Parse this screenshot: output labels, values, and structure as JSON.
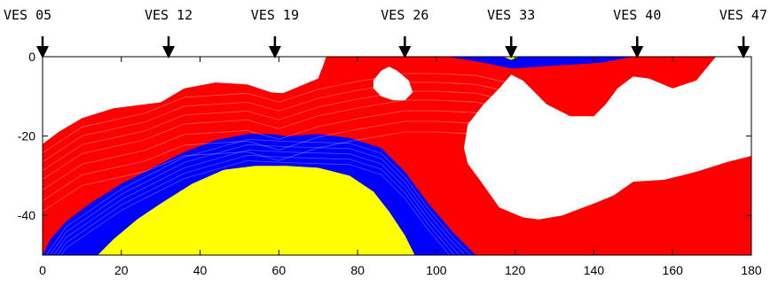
{
  "chart_data": {
    "type": "heatmap",
    "title": "",
    "xlabel": "",
    "ylabel": "",
    "xlim": [
      0,
      180
    ],
    "ylim": [
      -50,
      0
    ],
    "x_ticks": [
      {
        "value": 0,
        "label": "0"
      },
      {
        "value": 20,
        "label": "20"
      },
      {
        "value": 40,
        "label": "40"
      },
      {
        "value": 60,
        "label": "60"
      },
      {
        "value": 80,
        "label": "80"
      },
      {
        "value": 100,
        "label": "100"
      },
      {
        "value": 120,
        "label": "120"
      },
      {
        "value": 140,
        "label": "140"
      },
      {
        "value": 160,
        "label": "160"
      },
      {
        "value": 180,
        "label": "180"
      }
    ],
    "y_ticks": [
      {
        "value": 0,
        "label": "0"
      },
      {
        "value": -20,
        "label": "-20"
      },
      {
        "value": -40,
        "label": "-40"
      }
    ],
    "stations": [
      {
        "label": "VES 05",
        "x": 0
      },
      {
        "label": "VES 12",
        "x": 32
      },
      {
        "label": "VES 19",
        "x": 59
      },
      {
        "label": "VES 26",
        "x": 92
      },
      {
        "label": "VES 33",
        "x": 119
      },
      {
        "label": "VES 40",
        "x": 151
      },
      {
        "label": "VES 47",
        "x": 178
      }
    ],
    "colors": {
      "red": "#ff0000",
      "blue": "#0000ff",
      "yellow": "#ffff00",
      "background": "#ffffff"
    },
    "regions": [
      {
        "color": "red",
        "points": [
          [
            0,
            -22
          ],
          [
            4,
            -19
          ],
          [
            10,
            -15.5
          ],
          [
            18,
            -13
          ],
          [
            26,
            -12
          ],
          [
            30,
            -11.5
          ],
          [
            36,
            -8
          ],
          [
            44,
            -6.5
          ],
          [
            52,
            -7
          ],
          [
            58,
            -9
          ],
          [
            61,
            -9.2
          ],
          [
            64,
            -8
          ],
          [
            70,
            -5.5
          ],
          [
            72,
            0
          ],
          [
            100,
            0
          ],
          [
            110,
            0
          ],
          [
            130,
            0
          ],
          [
            150,
            0
          ],
          [
            171,
            0
          ],
          [
            166,
            -6
          ],
          [
            160,
            -8
          ],
          [
            154,
            -5.5
          ],
          [
            150,
            -5
          ],
          [
            146,
            -8
          ],
          [
            143,
            -12
          ],
          [
            140,
            -15
          ],
          [
            134,
            -15
          ],
          [
            128,
            -12
          ],
          [
            122,
            -6
          ],
          [
            119,
            -4.5
          ],
          [
            116,
            -8
          ],
          [
            112,
            -12
          ],
          [
            108,
            -17
          ],
          [
            107,
            -23
          ],
          [
            108,
            -27
          ],
          [
            111,
            -31
          ],
          [
            116,
            -38
          ],
          [
            122,
            -40.5
          ],
          [
            126,
            -41
          ],
          [
            132,
            -40
          ],
          [
            140,
            -37
          ],
          [
            145,
            -35
          ],
          [
            150,
            -31.5
          ],
          [
            158,
            -31
          ],
          [
            166,
            -29
          ],
          [
            174,
            -26.5
          ],
          [
            180,
            -25
          ],
          [
            180,
            -50
          ],
          [
            0,
            -50
          ]
        ]
      },
      {
        "color": "white",
        "points": [
          [
            69,
            -6
          ],
          [
            71,
            -3
          ],
          [
            72,
            0
          ],
          [
            70,
            0
          ],
          [
            67,
            -5
          ]
        ]
      },
      {
        "color": "white",
        "points": [
          [
            84,
            -6
          ],
          [
            86,
            -3.5
          ],
          [
            88,
            -2.5
          ],
          [
            90,
            -3.5
          ],
          [
            93,
            -6
          ],
          [
            94,
            -9
          ],
          [
            92,
            -11
          ],
          [
            89,
            -11
          ],
          [
            86,
            -10
          ],
          [
            84,
            -8
          ]
        ]
      },
      {
        "color": "blue",
        "points": [
          [
            0,
            -50
          ],
          [
            2,
            -46
          ],
          [
            6,
            -41.5
          ],
          [
            12,
            -37
          ],
          [
            20,
            -32
          ],
          [
            28,
            -28
          ],
          [
            36,
            -24
          ],
          [
            44,
            -21
          ],
          [
            52,
            -19.5
          ],
          [
            58,
            -19.5
          ],
          [
            62,
            -20
          ],
          [
            70,
            -19.5
          ],
          [
            78,
            -20.5
          ],
          [
            86,
            -23
          ],
          [
            92,
            -29
          ],
          [
            98,
            -37
          ],
          [
            104,
            -44
          ],
          [
            110,
            -50
          ]
        ]
      },
      {
        "color": "yellow",
        "points": [
          [
            14,
            -50
          ],
          [
            18,
            -46
          ],
          [
            24,
            -41
          ],
          [
            30,
            -37
          ],
          [
            38,
            -32
          ],
          [
            46,
            -28.5
          ],
          [
            54,
            -27.5
          ],
          [
            62,
            -27.5
          ],
          [
            70,
            -28
          ],
          [
            78,
            -30
          ],
          [
            84,
            -34
          ],
          [
            88,
            -39
          ],
          [
            92,
            -45
          ],
          [
            94.5,
            -50
          ]
        ]
      },
      {
        "color": "blue",
        "points": [
          [
            103,
            0
          ],
          [
            112,
            -1.5
          ],
          [
            119,
            -3
          ],
          [
            126,
            -2.5
          ],
          [
            134,
            -2
          ],
          [
            142,
            -1.5
          ],
          [
            150,
            0
          ]
        ]
      },
      {
        "color": "yellow",
        "points": [
          [
            117,
            0
          ],
          [
            119,
            -0.8
          ],
          [
            121,
            0
          ]
        ]
      }
    ]
  }
}
